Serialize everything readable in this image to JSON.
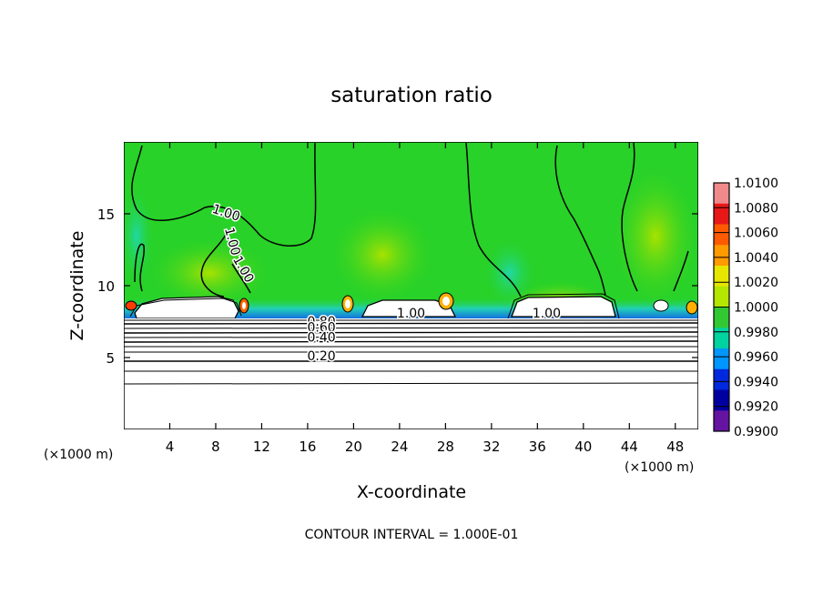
{
  "chart_data": {
    "type": "heatmap",
    "title": "saturation ratio",
    "xlabel": "X-coordinate",
    "ylabel": "Z-coordinate",
    "x_unit_left": "(×1000 m)",
    "x_unit_right": "(×1000 m)",
    "footer": "CONTOUR INTERVAL = 1.000E-01",
    "xlim": [
      0,
      50
    ],
    "ylim": [
      0,
      20
    ],
    "x_ticks": [
      4,
      8,
      12,
      16,
      20,
      24,
      28,
      32,
      36,
      40,
      44,
      48
    ],
    "y_ticks": [
      5,
      10,
      15
    ],
    "colorbar": {
      "min": 0.99,
      "max": 1.01,
      "labels": [
        "1.0100",
        "1.0080",
        "1.0060",
        "1.0040",
        "1.0020",
        "1.0000",
        "0.9980",
        "0.9960",
        "0.9940",
        "0.9920",
        "0.9900"
      ],
      "colors": [
        "#f08a8a",
        "#e81818",
        "#ff5a00",
        "#ff9a00",
        "#e6e600",
        "#b4e600",
        "#32c832",
        "#00d2a0",
        "#0096ff",
        "#0028dc",
        "#0000a0",
        "#6414a0"
      ]
    },
    "background_value": 1.0,
    "background_color": "#28d228",
    "contour_labels": [
      {
        "text": "1.00",
        "x": 8.8,
        "z": 14.8,
        "angle": 18
      },
      {
        "text": "1.00",
        "x": 9.1,
        "z": 13.0,
        "angle": 75
      },
      {
        "text": "1.00",
        "x": 10.1,
        "z": 11.0,
        "angle": 60
      },
      {
        "text": "1.00",
        "x": 25.0,
        "z": 7.8,
        "angle": 0
      },
      {
        "text": "1.00",
        "x": 36.8,
        "z": 7.8,
        "angle": 0
      },
      {
        "text": "0.80",
        "x": 17.2,
        "z": 7.2,
        "angle": 0
      },
      {
        "text": "0.60",
        "x": 17.2,
        "z": 6.8,
        "angle": 0
      },
      {
        "text": "0.40",
        "x": 17.2,
        "z": 6.1,
        "angle": 0
      },
      {
        "text": "0.20",
        "x": 17.2,
        "z": 4.8,
        "angle": 0
      }
    ]
  }
}
